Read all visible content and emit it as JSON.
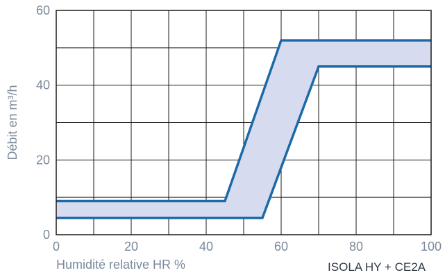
{
  "chart_data": {
    "type": "area",
    "title": "",
    "xlabel": "Humidité relative HR %",
    "ylabel": "Débit en m³/h",
    "caption": "ISOLA HY + CE2A",
    "xlim": [
      0,
      100
    ],
    "ylim": [
      0,
      60
    ],
    "x_ticks": [
      0,
      20,
      40,
      60,
      80,
      100
    ],
    "y_ticks": [
      0,
      20,
      40,
      60
    ],
    "grid": true,
    "grid_x_step": 10,
    "grid_y_step": 10,
    "series": [
      {
        "x": [
          0,
          45,
          60,
          100
        ],
        "y": [
          9,
          9,
          52,
          52
        ]
      },
      {
        "x": [
          0,
          55,
          70,
          100
        ],
        "y": [
          4.5,
          4.5,
          45,
          45
        ]
      }
    ],
    "colors": {
      "line": "#1b6aa8",
      "fill": "#d7dbf0",
      "grid": "#1a1a1a",
      "text": "#7a8a9a",
      "caption": "#2f3a46"
    }
  }
}
